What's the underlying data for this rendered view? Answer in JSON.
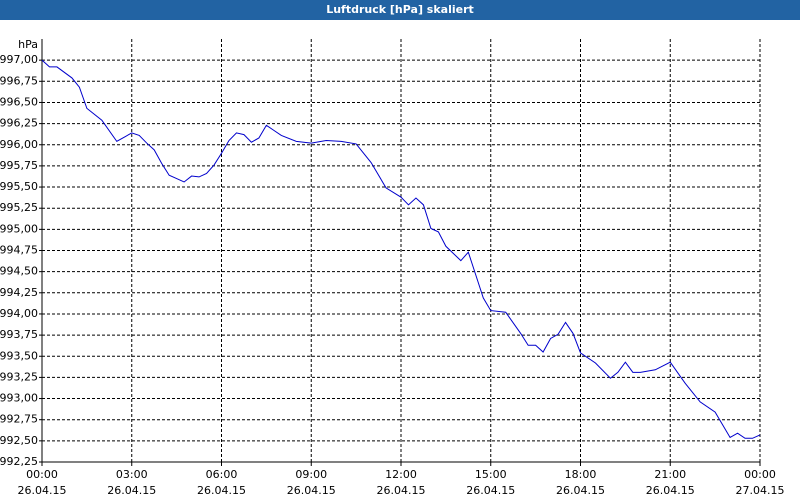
{
  "chart_data": {
    "type": "line",
    "title": "Luftdruck [hPa] skaliert",
    "y_label": "hPa",
    "x": [
      0,
      0.25,
      0.5,
      1,
      1.25,
      1.5,
      2,
      2.5,
      2.75,
      3,
      3.25,
      3.5,
      3.75,
      4,
      4.25,
      4.5,
      4.75,
      5,
      5.25,
      5.5,
      5.75,
      6,
      6.25,
      6.5,
      6.75,
      7,
      7.25,
      7.5,
      7.75,
      8,
      8.5,
      9,
      9.5,
      10,
      10.5,
      11,
      11.5,
      12,
      12.25,
      12.5,
      12.75,
      13,
      13.25,
      13.5,
      14,
      14.25,
      14.5,
      14.75,
      15,
      15.5,
      16,
      16.25,
      16.5,
      16.75,
      17,
      17.25,
      17.5,
      17.75,
      18,
      18.5,
      19,
      19.25,
      19.5,
      19.75,
      20,
      20.5,
      21,
      21.5,
      22,
      22.5,
      23,
      23.25,
      23.5,
      23.75,
      24
    ],
    "series": [
      {
        "name": "Luftdruck",
        "color": "#0000cc",
        "values": [
          997.0,
          996.92,
          996.92,
          996.79,
          996.68,
          996.43,
          996.29,
          996.04,
          996.09,
          996.14,
          996.11,
          996.02,
          995.94,
          995.78,
          995.64,
          995.6,
          995.56,
          995.63,
          995.62,
          995.66,
          995.76,
          995.9,
          996.05,
          996.14,
          996.12,
          996.03,
          996.08,
          996.23,
          996.17,
          996.11,
          996.04,
          996.02,
          996.05,
          996.04,
          996.01,
          995.79,
          995.49,
          995.38,
          995.29,
          995.37,
          995.29,
          995.01,
          994.97,
          994.8,
          994.63,
          994.73,
          994.46,
          994.19,
          994.04,
          994.02,
          993.77,
          993.63,
          993.63,
          993.55,
          993.71,
          993.76,
          993.9,
          993.77,
          993.54,
          993.42,
          993.24,
          993.31,
          993.43,
          993.31,
          993.31,
          993.34,
          993.43,
          993.18,
          992.96,
          992.84,
          992.54,
          992.59,
          992.53,
          992.53,
          992.57
        ]
      }
    ],
    "xlim": [
      0,
      24
    ],
    "xticks": [
      {
        "value": 0,
        "label": "00:00"
      },
      {
        "value": 3,
        "label": "03:00"
      },
      {
        "value": 6,
        "label": "06:00"
      },
      {
        "value": 9,
        "label": "09:00"
      },
      {
        "value": 12,
        "label": "12:00"
      },
      {
        "value": 15,
        "label": "15:00"
      },
      {
        "value": 18,
        "label": "18:00"
      },
      {
        "value": 21,
        "label": "21:00"
      },
      {
        "value": 24,
        "label": "00:00"
      }
    ],
    "xtick_dates": [
      "26.04.15",
      "26.04.15",
      "26.04.15",
      "26.04.15",
      "26.04.15",
      "26.04.15",
      "26.04.15",
      "26.04.15",
      "27.04.15"
    ],
    "ylim": [
      992.25,
      997.25
    ],
    "yticks": [
      {
        "value": 992.25,
        "label": "992,25"
      },
      {
        "value": 992.5,
        "label": "992,50"
      },
      {
        "value": 992.75,
        "label": "992,75"
      },
      {
        "value": 993,
        "label": "993,00"
      },
      {
        "value": 993.25,
        "label": "993,25"
      },
      {
        "value": 993.5,
        "label": "993,50"
      },
      {
        "value": 993.75,
        "label": "993,75"
      },
      {
        "value": 994,
        "label": "994,00"
      },
      {
        "value": 994.25,
        "label": "994,25"
      },
      {
        "value": 994.5,
        "label": "994,50"
      },
      {
        "value": 994.75,
        "label": "994,75"
      },
      {
        "value": 995,
        "label": "995,00"
      },
      {
        "value": 995.25,
        "label": "995,25"
      },
      {
        "value": 995.5,
        "label": "995,50"
      },
      {
        "value": 995.75,
        "label": "995,75"
      },
      {
        "value": 996,
        "label": "996,00"
      },
      {
        "value": 996.25,
        "label": "996,25"
      },
      {
        "value": 996.5,
        "label": "996,50"
      },
      {
        "value": 996.75,
        "label": "996,75"
      },
      {
        "value": 997,
        "label": "997,00"
      }
    ],
    "grid": true
  }
}
